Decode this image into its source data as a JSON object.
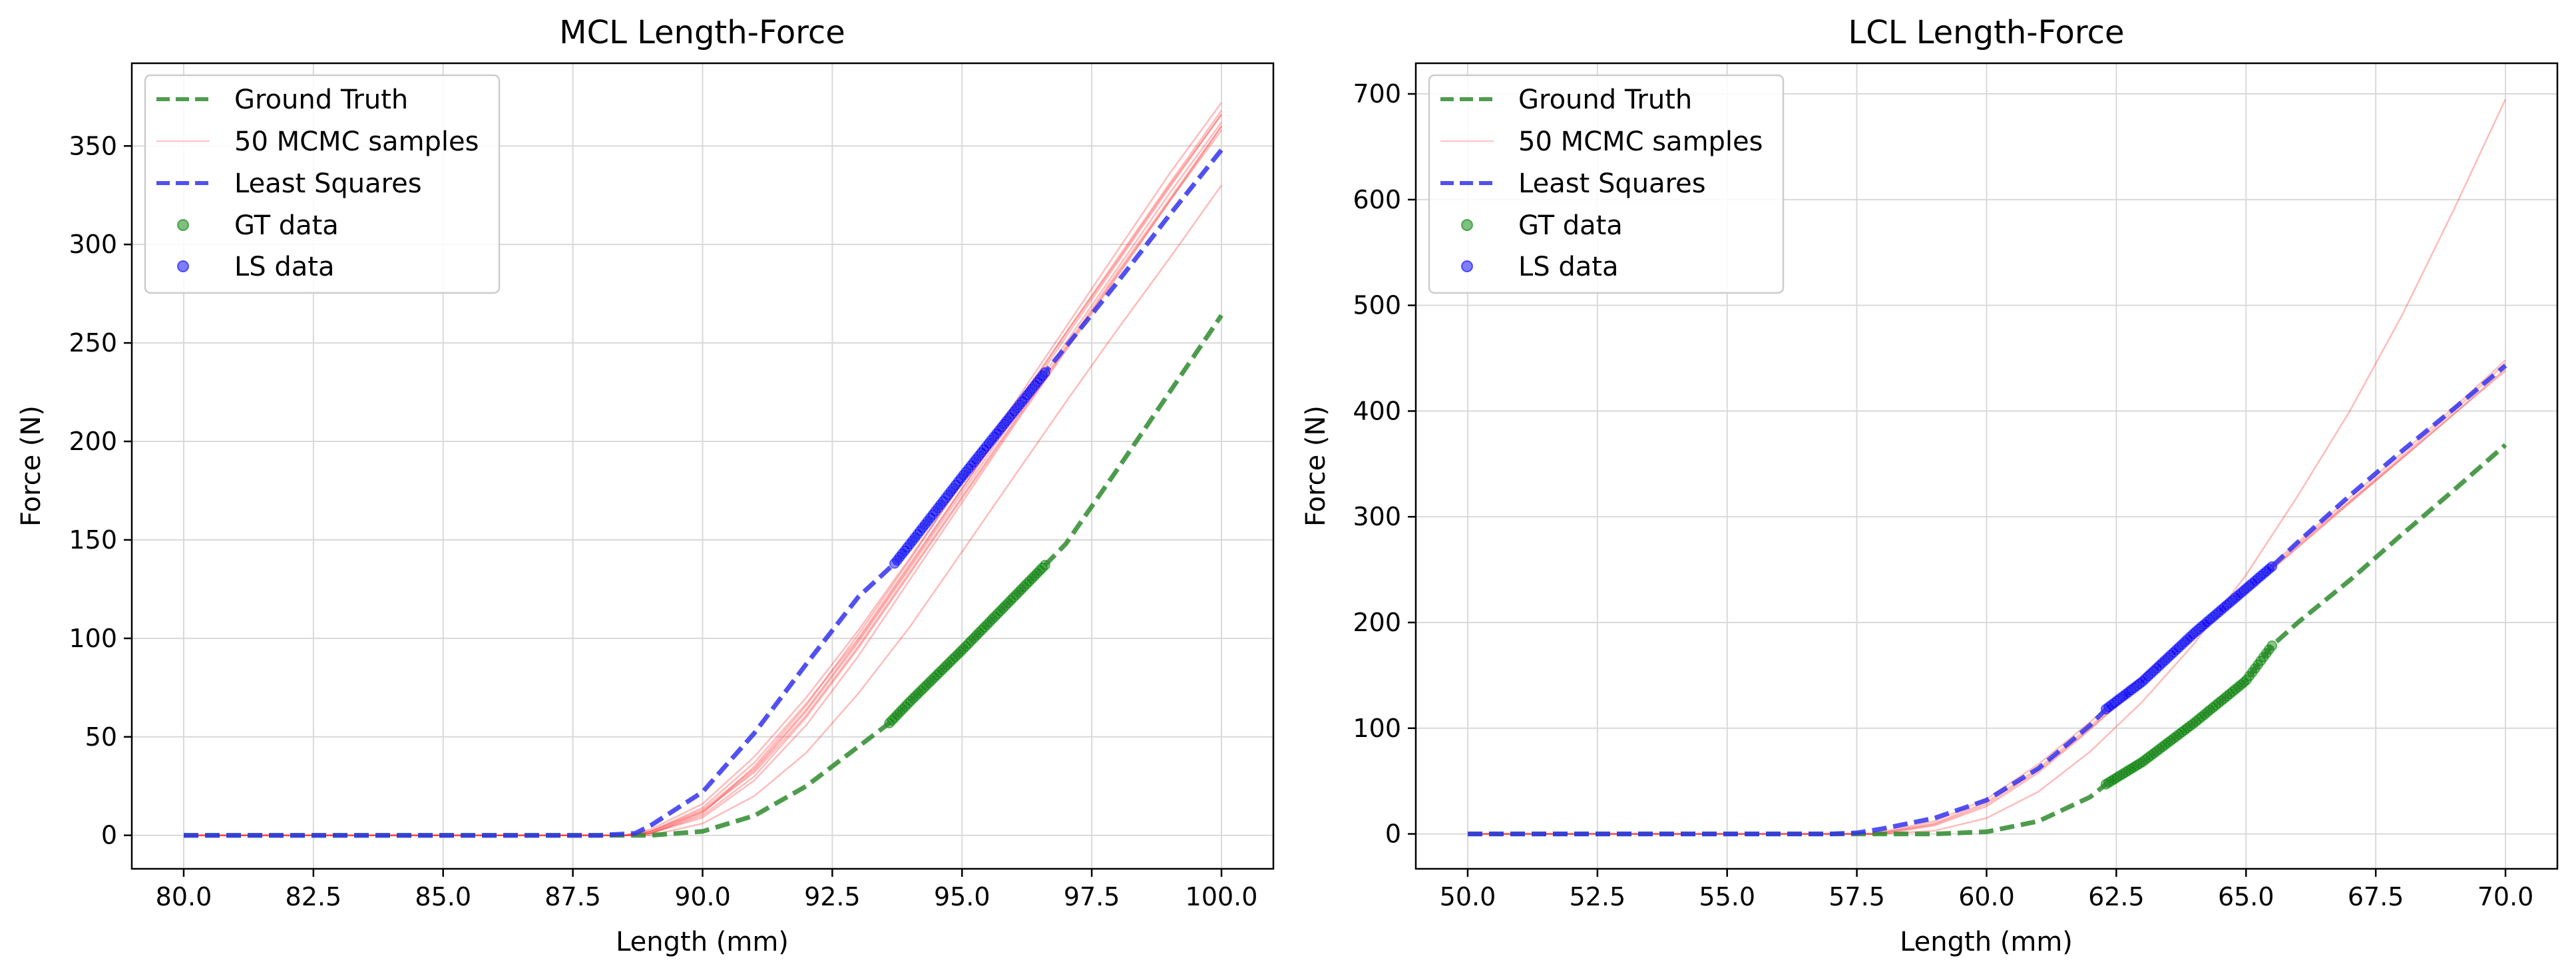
{
  "chart_data": [
    {
      "type": "line",
      "title": "MCL Length-Force",
      "xlabel": "Length (mm)",
      "ylabel": "Force (N)",
      "xlim": [
        79.0,
        101.0
      ],
      "ylim": [
        -17,
        392
      ],
      "xticks": [
        "80.0",
        "82.5",
        "85.0",
        "87.5",
        "90.0",
        "92.5",
        "95.0",
        "97.5",
        "100.0"
      ],
      "yticks": [
        "0",
        "50",
        "100",
        "150",
        "200",
        "250",
        "300",
        "350"
      ],
      "grid": true,
      "legend_position": "upper left",
      "legend": [
        "Ground Truth",
        "50 MCMC samples",
        "Least Squares",
        "GT data",
        "LS data"
      ],
      "colors": {
        "ground_truth": "#2e8b2e",
        "mcmc": "#ff3b3b",
        "least_squares": "#3333ee",
        "gt_data": "#008000",
        "ls_data": "#0000ff"
      },
      "ground_truth": {
        "x": [
          80,
          86,
          88,
          89,
          90,
          91,
          92,
          93,
          93.6,
          94,
          95,
          96,
          97,
          98,
          99,
          100
        ],
        "y": [
          0,
          0,
          0,
          0,
          2,
          10,
          25,
          45,
          57,
          68,
          94,
          121,
          148,
          186,
          225,
          264
        ]
      },
      "least_squares": {
        "x": [
          80,
          86,
          88,
          88.7,
          89,
          90,
          91,
          92,
          93,
          93.7,
          94,
          95,
          96,
          96.6,
          97,
          98,
          99,
          100
        ],
        "y": [
          0,
          0,
          0,
          1,
          5,
          22,
          52,
          87,
          121,
          138,
          148,
          182,
          215,
          235,
          248,
          281,
          315,
          348
        ]
      },
      "mcmc_samples": [
        {
          "x": [
            80,
            88.5,
            89,
            90,
            91,
            92,
            93,
            94,
            95,
            96,
            97,
            98,
            99,
            100
          ],
          "y": [
            0,
            0,
            2,
            14,
            37,
            67,
            100,
            138,
            176,
            215,
            255,
            293,
            331,
            368
          ]
        },
        {
          "x": [
            80,
            88.5,
            89,
            90,
            91,
            92,
            93,
            94,
            95,
            96,
            97,
            98,
            99,
            100
          ],
          "y": [
            0,
            0,
            2,
            12,
            33,
            63,
            98,
            136,
            174,
            212,
            250,
            288,
            326,
            362
          ]
        },
        {
          "x": [
            80,
            88.5,
            89,
            90,
            91,
            92,
            93,
            94,
            95,
            96,
            97,
            98,
            99,
            100
          ],
          "y": [
            0,
            0,
            1,
            10,
            30,
            60,
            95,
            133,
            171,
            209,
            247,
            285,
            322,
            358
          ]
        },
        {
          "x": [
            80,
            88.5,
            89,
            90,
            91,
            92,
            93,
            94,
            95,
            96,
            97,
            98,
            99,
            100
          ],
          "y": [
            0,
            0,
            1,
            11,
            35,
            66,
            102,
            140,
            180,
            219,
            258,
            297,
            336,
            372
          ]
        },
        {
          "x": [
            80,
            88.5,
            89,
            90,
            91,
            92,
            93,
            94,
            95,
            96,
            97,
            98,
            99,
            100
          ],
          "y": [
            0,
            0,
            3,
            16,
            40,
            70,
            104,
            141,
            179,
            217,
            255,
            292,
            330,
            366
          ]
        },
        {
          "x": [
            80,
            88.5,
            89,
            90,
            91,
            92,
            93,
            94,
            95,
            96,
            97,
            98,
            99,
            100
          ],
          "y": [
            0,
            0,
            1,
            9,
            28,
            56,
            91,
            130,
            169,
            208,
            246,
            284,
            322,
            360
          ]
        },
        {
          "x": [
            80,
            89,
            90,
            91,
            92,
            93,
            94,
            95,
            96,
            97,
            98,
            99,
            100
          ],
          "y": [
            0,
            0,
            6,
            20,
            42,
            72,
            106,
            144,
            182,
            220,
            257,
            293,
            330
          ]
        },
        {
          "x": [
            80,
            88.8,
            89,
            90,
            91,
            92,
            93,
            94,
            95,
            96,
            97,
            98,
            99,
            100
          ],
          "y": [
            0,
            0,
            1,
            12,
            32,
            61,
            96,
            134,
            172,
            210,
            248,
            286,
            323,
            360
          ]
        },
        {
          "x": [
            80,
            88.6,
            89,
            90,
            91,
            92,
            93,
            94,
            95,
            96,
            97,
            98,
            99,
            100
          ],
          "y": [
            0,
            0,
            2,
            13,
            34,
            64,
            99,
            137,
            176,
            214,
            253,
            291,
            329,
            366
          ]
        }
      ],
      "gt_data": {
        "x_range": [
          93.6,
          96.6
        ],
        "y_range": [
          57,
          152
        ]
      },
      "ls_data": {
        "x_range": [
          93.7,
          96.6
        ],
        "y_range": [
          138,
          235
        ]
      }
    },
    {
      "type": "line",
      "title": "LCL Length-Force",
      "xlabel": "Length (mm)",
      "ylabel": "Force (N)",
      "xlim": [
        49.0,
        71.0
      ],
      "ylim": [
        -33,
        729
      ],
      "xticks": [
        "50.0",
        "52.5",
        "55.0",
        "57.5",
        "60.0",
        "62.5",
        "65.0",
        "67.5",
        "70.0"
      ],
      "yticks": [
        "0",
        "100",
        "200",
        "300",
        "400",
        "500",
        "600",
        "700"
      ],
      "grid": true,
      "legend_position": "upper left",
      "legend": [
        "Ground Truth",
        "50 MCMC samples",
        "Least Squares",
        "GT data",
        "LS data"
      ],
      "colors": {
        "ground_truth": "#2e8b2e",
        "mcmc": "#ff3b3b",
        "least_squares": "#3333ee",
        "gt_data": "#008000",
        "ls_data": "#0000ff"
      },
      "ground_truth": {
        "x": [
          50,
          57,
          58,
          59,
          60,
          61,
          62,
          62.3,
          63,
          64,
          65,
          65.5,
          66,
          67,
          68,
          69,
          70
        ],
        "y": [
          0,
          0,
          0,
          0,
          2,
          12,
          35,
          47,
          68,
          105,
          145,
          178,
          200,
          240,
          283,
          325,
          368
        ]
      },
      "least_squares": {
        "x": [
          50,
          57,
          57.5,
          58,
          59,
          60,
          61,
          62,
          62.3,
          63,
          64,
          65,
          65.5,
          66,
          67,
          68,
          69,
          70
        ],
        "y": [
          0,
          0,
          1,
          5,
          15,
          32,
          62,
          103,
          118,
          144,
          190,
          232,
          253,
          276,
          320,
          362,
          402,
          443
        ]
      },
      "mcmc_samples": [
        {
          "x": [
            50,
            57.8,
            58,
            59,
            60,
            61,
            62,
            63,
            64,
            65,
            66,
            67,
            68,
            69,
            70
          ],
          "y": [
            0,
            0,
            1,
            10,
            30,
            62,
            102,
            146,
            190,
            232,
            274,
            315,
            357,
            400,
            445
          ]
        },
        {
          "x": [
            50,
            58,
            59,
            60,
            61,
            62,
            63,
            64,
            65,
            66,
            67,
            68,
            69,
            70
          ],
          "y": [
            0,
            0,
            8,
            26,
            58,
            99,
            143,
            187,
            229,
            271,
            313,
            355,
            397,
            440
          ]
        },
        {
          "x": [
            50,
            57.8,
            58,
            59,
            60,
            61,
            62,
            63,
            64,
            65,
            66,
            67,
            68,
            69,
            70
          ],
          "y": [
            0,
            0,
            1,
            9,
            28,
            60,
            100,
            144,
            188,
            230,
            272,
            314,
            355,
            397,
            438
          ]
        },
        {
          "x": [
            50,
            57.8,
            58,
            59,
            60,
            61,
            62,
            63,
            64,
            65,
            66,
            67,
            68,
            69,
            70
          ],
          "y": [
            0,
            0,
            2,
            12,
            33,
            66,
            106,
            149,
            192,
            234,
            276,
            318,
            360,
            403,
            448
          ]
        },
        {
          "x": [
            50,
            58,
            59,
            60,
            61,
            62,
            63,
            64,
            65,
            66,
            67,
            68,
            69,
            70
          ],
          "y": [
            0,
            0,
            3,
            15,
            40,
            78,
            125,
            180,
            245,
            320,
            400,
            490,
            590,
            695
          ]
        }
      ],
      "gt_data": {
        "x_range": [
          62.3,
          65.5
        ],
        "y_range": [
          47,
          178
        ]
      },
      "ls_data": {
        "x_range": [
          62.3,
          65.5
        ],
        "y_range": [
          118,
          253
        ]
      }
    }
  ]
}
